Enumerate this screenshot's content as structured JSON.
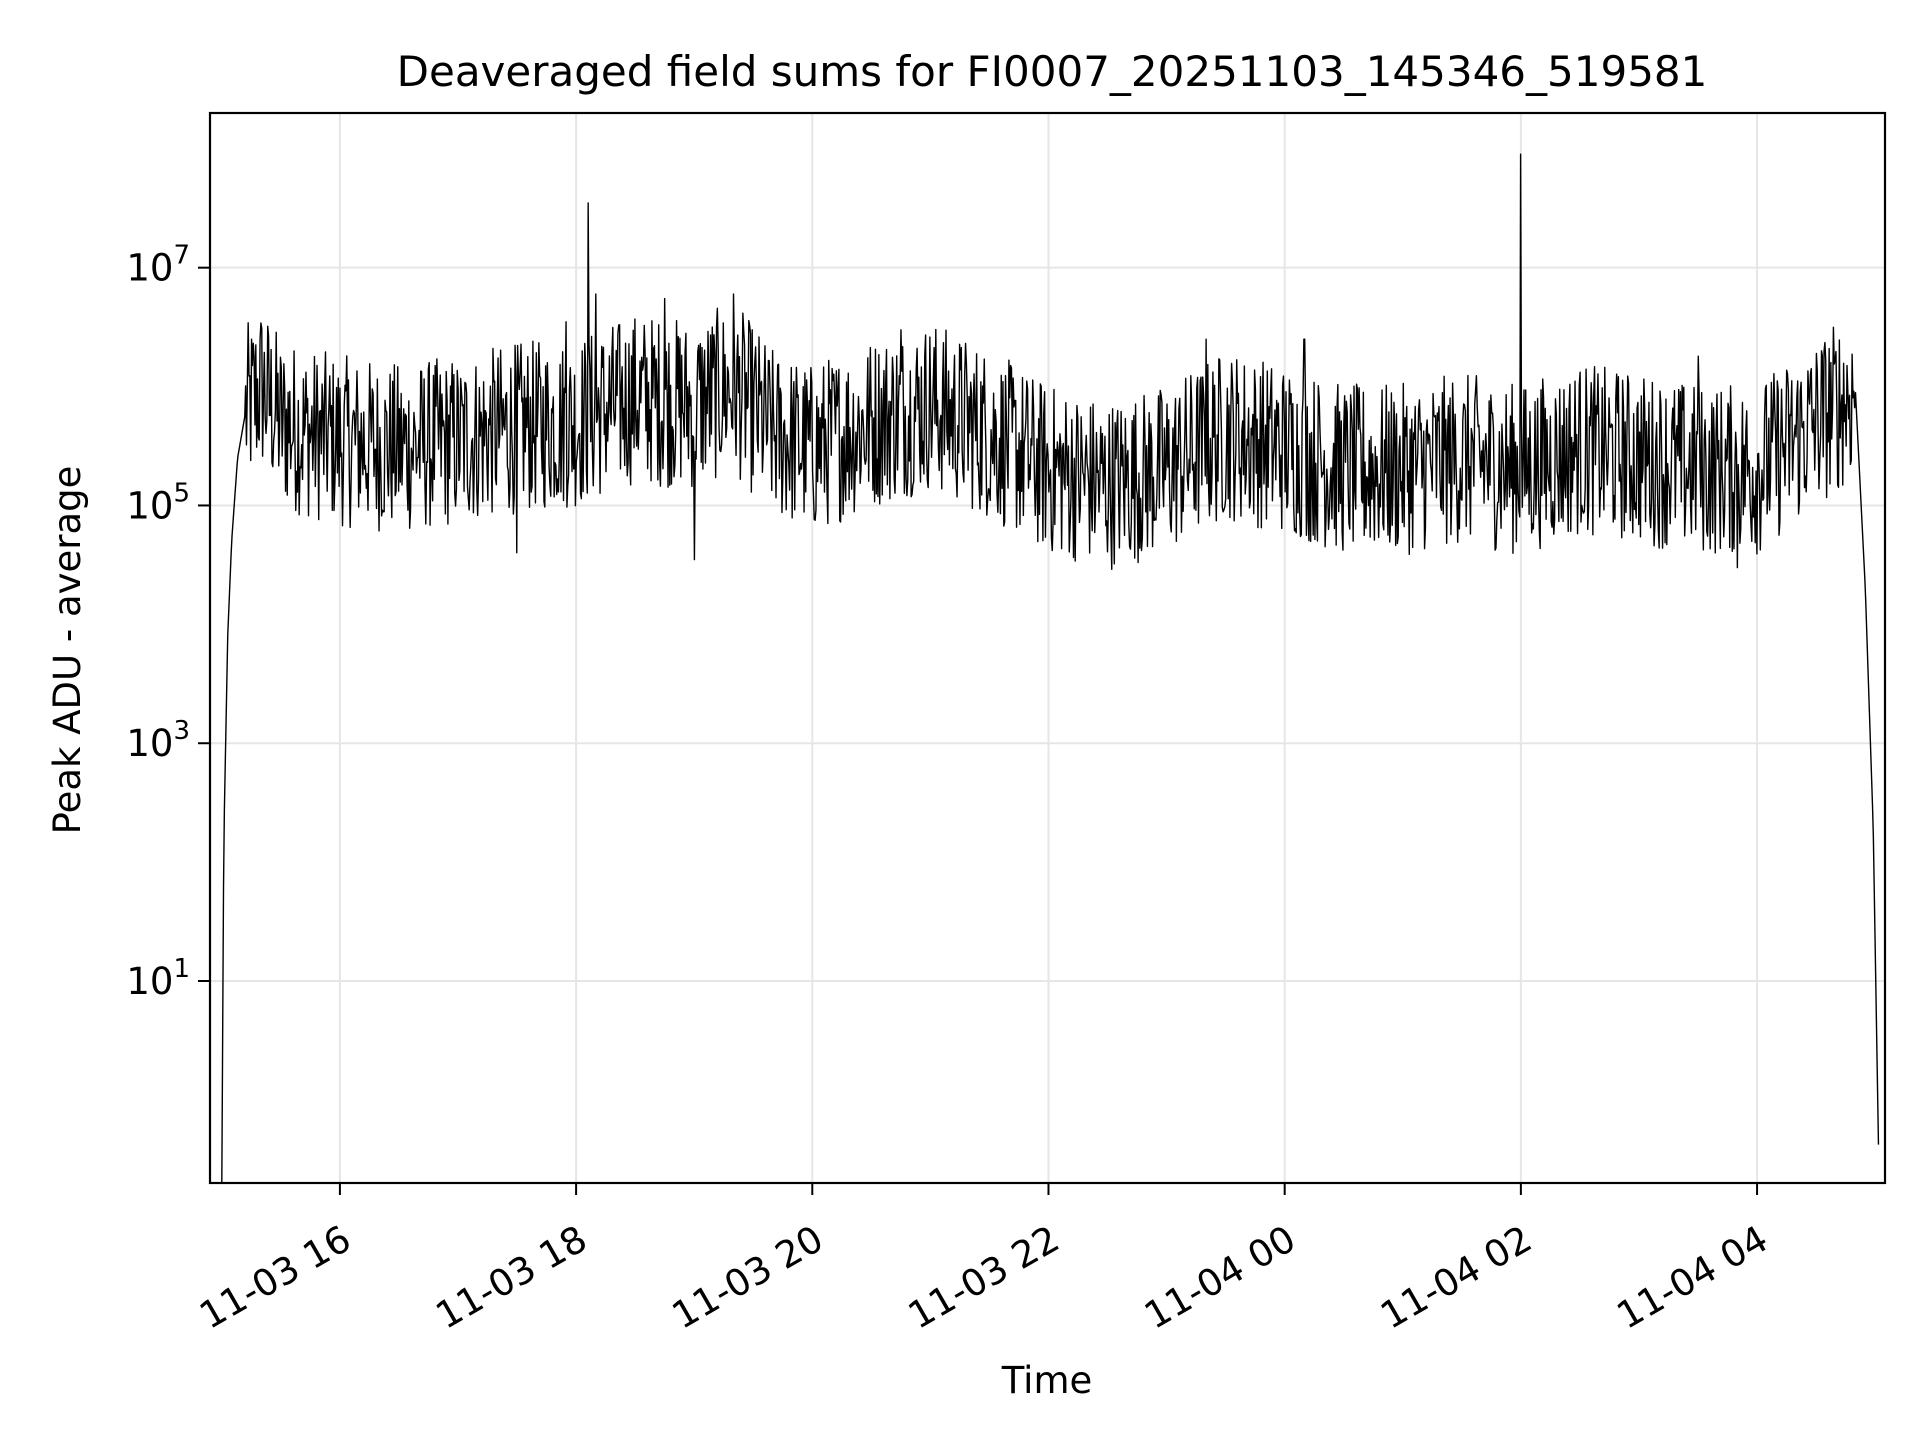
{
  "chart_data": {
    "type": "line",
    "title": "Deaveraged field sums for FI0007_20251103_145346_519581",
    "xlabel": "Time",
    "ylabel": "Peak ADU - average",
    "x_scale": "time",
    "y_scale": "log",
    "xlim": [
      "2025-11-03T14:54",
      "2025-11-04T05:05"
    ],
    "ylim": [
      0.2,
      200000000
    ],
    "grid": true,
    "x_ticks": [
      {
        "value": "2025-11-03T16:00",
        "label": "11-03 16"
      },
      {
        "value": "2025-11-03T18:00",
        "label": "11-03 18"
      },
      {
        "value": "2025-11-03T20:00",
        "label": "11-03 20"
      },
      {
        "value": "2025-11-03T22:00",
        "label": "11-03 22"
      },
      {
        "value": "2025-11-04T00:00",
        "label": "11-04 00"
      },
      {
        "value": "2025-11-04T02:00",
        "label": "11-04 02"
      },
      {
        "value": "2025-11-04T04:00",
        "label": "11-04 04"
      }
    ],
    "y_ticks": [
      {
        "value": 10,
        "base": "10",
        "exp": "1"
      },
      {
        "value": 1000,
        "base": "10",
        "exp": "3"
      },
      {
        "value": 100000,
        "base": "10",
        "exp": "5"
      },
      {
        "value": 10000000,
        "base": "10",
        "exp": "7"
      }
    ],
    "series": [
      {
        "color": "#000000",
        "points": [
          {
            "x": "2025-11-03T15:00",
            "y": 0.2
          },
          {
            "x": "2025-11-03T15:01",
            "y": 150
          },
          {
            "x": "2025-11-03T15:03",
            "y": 8000
          },
          {
            "x": "2025-11-03T15:05",
            "y": 50000
          },
          {
            "x": "2025-11-03T15:08",
            "y": 250000
          },
          {
            "x": "2025-11-03T15:12",
            "y": 600000
          },
          {
            "x": "2025-11-03T15:20",
            "y": 1000000
          },
          {
            "x": "2025-11-03T15:30",
            "y": 500000
          },
          {
            "x": "2025-11-03T15:45",
            "y": 400000
          },
          {
            "x": "2025-11-03T16:00",
            "y": 350000
          },
          {
            "x": "2025-11-03T16:30",
            "y": 300000
          },
          {
            "x": "2025-11-03T17:00",
            "y": 350000
          },
          {
            "x": "2025-11-03T17:30",
            "y": 450000
          },
          {
            "x": "2025-11-03T18:00",
            "y": 500000
          },
          {
            "x": "2025-11-03T18:30",
            "y": 800000
          },
          {
            "x": "2025-11-03T19:00",
            "y": 700000
          },
          {
            "x": "2025-11-03T19:20",
            "y": 1000000
          },
          {
            "x": "2025-11-03T19:40",
            "y": 400000
          },
          {
            "x": "2025-11-03T20:00",
            "y": 300000
          },
          {
            "x": "2025-11-03T20:30",
            "y": 500000
          },
          {
            "x": "2025-11-03T21:00",
            "y": 700000
          },
          {
            "x": "2025-11-03T21:30",
            "y": 400000
          },
          {
            "x": "2025-11-03T22:00",
            "y": 200000
          },
          {
            "x": "2025-11-03T22:30",
            "y": 150000
          },
          {
            "x": "2025-11-03T23:00",
            "y": 200000
          },
          {
            "x": "2025-11-03T23:30",
            "y": 400000
          },
          {
            "x": "2025-11-04T00:00",
            "y": 300000
          },
          {
            "x": "2025-11-04T00:30",
            "y": 200000
          },
          {
            "x": "2025-11-04T01:00",
            "y": 200000
          },
          {
            "x": "2025-11-04T01:30",
            "y": 250000
          },
          {
            "x": "2025-11-04T02:00",
            "y": 200000
          },
          {
            "x": "2025-11-04T02:30",
            "y": 300000
          },
          {
            "x": "2025-11-04T03:00",
            "y": 250000
          },
          {
            "x": "2025-11-04T03:30",
            "y": 200000
          },
          {
            "x": "2025-11-04T04:00",
            "y": 200000
          },
          {
            "x": "2025-11-04T04:30",
            "y": 500000
          },
          {
            "x": "2025-11-04T04:50",
            "y": 900000
          },
          {
            "x": "2025-11-04T04:55",
            "y": 20000
          },
          {
            "x": "2025-11-04T04:59",
            "y": 200
          },
          {
            "x": "2025-11-04T05:02",
            "y": 0.2
          }
        ],
        "spikes": [
          {
            "x": "2025-11-03T15:15",
            "y": 2500000
          },
          {
            "x": "2025-11-03T17:55",
            "y": 3500000
          },
          {
            "x": "2025-11-03T18:06",
            "y": 35000000
          },
          {
            "x": "2025-11-03T18:10",
            "y": 6000000
          },
          {
            "x": "2025-11-03T18:45",
            "y": 5500000
          },
          {
            "x": "2025-11-03T19:20",
            "y": 6000000
          },
          {
            "x": "2025-11-03T20:45",
            "y": 3000000
          },
          {
            "x": "2025-11-03T23:20",
            "y": 2500000
          },
          {
            "x": "2025-11-04T00:10",
            "y": 2500000
          },
          {
            "x": "2025-11-04T02:00",
            "y": 90000000
          },
          {
            "x": "2025-11-04T03:30",
            "y": 1800000
          },
          {
            "x": "2025-11-04T04:30",
            "y": 1900000
          }
        ],
        "dips": [
          {
            "x": "2025-11-03T17:30",
            "y": 40000
          },
          {
            "x": "2025-11-03T19:00",
            "y": 35000
          },
          {
            "x": "2025-11-04T03:50",
            "y": 30000
          }
        ]
      }
    ]
  }
}
